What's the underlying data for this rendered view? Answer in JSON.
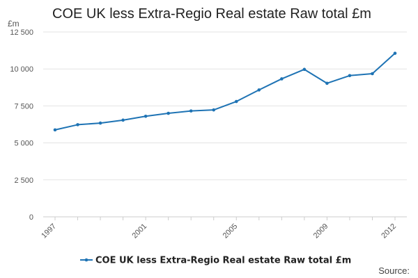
{
  "chart_data": {
    "type": "line",
    "title": "COE UK less Extra-Regio Real estate Raw total £m",
    "ylabel": "£m",
    "xlabel": "",
    "x": [
      1997,
      1998,
      1999,
      2000,
      2001,
      2002,
      2003,
      2004,
      2005,
      2006,
      2007,
      2008,
      2009,
      2010,
      2011,
      2012
    ],
    "series": [
      {
        "name": "COE UK less Extra-Regio Real estate Raw total £m",
        "values": [
          5880,
          6230,
          6340,
          6540,
          6800,
          7000,
          7160,
          7230,
          7800,
          8580,
          9330,
          9970,
          9030,
          9550,
          9680,
          11060
        ]
      }
    ],
    "xticks": [
      "1997",
      "2001",
      "2005",
      "2009",
      "2012"
    ],
    "yticks": [
      "0",
      "2 500",
      "5 000",
      "7 500",
      "10 000",
      "12 500"
    ],
    "ylim": [
      0,
      12500
    ],
    "grid": true,
    "legend_position": "bottom"
  },
  "colors": {
    "series": "#1e73b4",
    "grid": "#e3e3e3"
  },
  "source_label": "Source:"
}
